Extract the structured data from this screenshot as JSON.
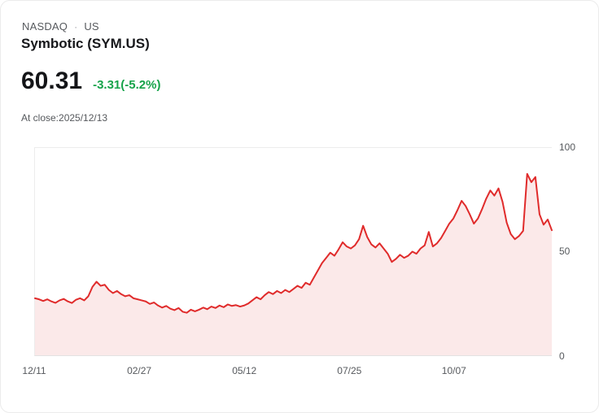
{
  "header": {
    "exchange": "NASDAQ",
    "separator": "·",
    "region": "US",
    "company": "Symbotic (SYM.US)"
  },
  "quote": {
    "price": "60.31",
    "change": "-3.31(-5.2%)",
    "change_color": "#16a34a",
    "close_note": "At close:2025/12/13"
  },
  "chart_data": {
    "type": "area",
    "title": "Symbotic (SYM.US)",
    "xlabel": "",
    "ylabel": "",
    "ylim": [
      0,
      100
    ],
    "grid": "top and bottom hairlines only, y labels on right",
    "legend": "none",
    "y_ticks": [
      "100",
      "50",
      "0"
    ],
    "x_ticks": [
      {
        "label": "12/11",
        "pos": 0
      },
      {
        "label": "02/27",
        "pos": 0.203
      },
      {
        "label": "05/12",
        "pos": 0.406
      },
      {
        "label": "07/25",
        "pos": 0.609
      },
      {
        "label": "10/07",
        "pos": 0.811
      }
    ],
    "colors": {
      "line": "#e02b2b",
      "area": "#fbe9e9"
    },
    "values": [
      27.5,
      27.0,
      26.2,
      27.0,
      26.0,
      25.3,
      26.5,
      27.2,
      26.0,
      25.2,
      26.8,
      27.5,
      26.5,
      28.5,
      33.0,
      35.5,
      33.5,
      34.0,
      31.5,
      30.0,
      31.0,
      29.5,
      28.5,
      29.0,
      27.5,
      27.0,
      26.5,
      26.0,
      24.8,
      25.5,
      24.0,
      23.0,
      23.8,
      22.5,
      21.8,
      22.8,
      21.0,
      20.5,
      22.0,
      21.2,
      22.0,
      23.0,
      22.2,
      23.5,
      22.8,
      24.0,
      23.2,
      24.5,
      23.8,
      24.2,
      23.5,
      24.0,
      25.0,
      26.5,
      28.0,
      27.0,
      29.0,
      30.5,
      29.5,
      31.0,
      30.0,
      31.5,
      30.5,
      32.0,
      33.5,
      32.5,
      35.0,
      34.0,
      37.5,
      41.0,
      44.5,
      47.0,
      49.5,
      48.0,
      51.0,
      54.5,
      52.5,
      51.5,
      53.0,
      56.0,
      62.5,
      57.0,
      53.5,
      52.0,
      54.0,
      51.5,
      49.0,
      45.0,
      46.5,
      48.5,
      47.0,
      48.0,
      50.0,
      49.0,
      51.5,
      53.0,
      59.5,
      52.5,
      54.0,
      56.5,
      60.0,
      63.5,
      66.0,
      70.0,
      74.5,
      72.0,
      68.0,
      63.5,
      66.0,
      70.5,
      75.5,
      79.5,
      77.0,
      80.5,
      74.0,
      64.0,
      58.5,
      56.0,
      57.5,
      60.0,
      87.5,
      83.5,
      86.0,
      68.0,
      63.0,
      65.5,
      60.31
    ]
  }
}
